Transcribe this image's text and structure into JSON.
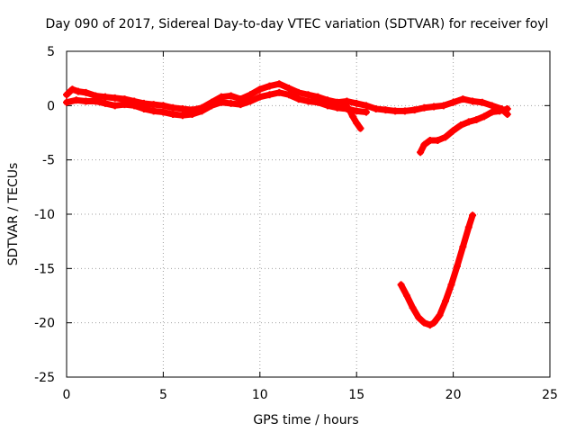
{
  "chart_data": {
    "type": "scatter",
    "title": "Day 090 of 2017, Sidereal Day-to-day VTEC variation (SDTVAR) for receiver foyl",
    "xlabel": "GPS time / hours",
    "ylabel": "SDTVAR / TECUs",
    "xlim": [
      0,
      25
    ],
    "ylim": [
      -25,
      5
    ],
    "xticks": [
      0,
      5,
      10,
      15,
      20,
      25
    ],
    "yticks": [
      -25,
      -20,
      -15,
      -10,
      -5,
      0,
      5
    ],
    "xtick_labels": [
      "0",
      "5",
      "10",
      "15",
      "20",
      "25"
    ],
    "ytick_labels": [
      "-25",
      "-20",
      "-15",
      "-10",
      "-5",
      "0",
      "5"
    ],
    "grid": true,
    "marker": "+",
    "series": [
      {
        "name": "main-band",
        "color": "#ff0000",
        "x": [
          0.0,
          0.3,
          0.6,
          1.0,
          1.5,
          2.0,
          2.5,
          3.0,
          3.5,
          4.0,
          4.5,
          5.0,
          5.5,
          6.0,
          6.5,
          7.0,
          7.5,
          8.0,
          8.5,
          9.0,
          9.5,
          10.0,
          10.5,
          11.0,
          11.5,
          12.0,
          12.5,
          13.0,
          13.5,
          14.0,
          14.5,
          15.0,
          15.5,
          16.0,
          16.5,
          17.0,
          17.5,
          18.0,
          18.5,
          19.0,
          19.5,
          20.0,
          20.5,
          21.0,
          21.5,
          22.0,
          22.5,
          22.8
        ],
        "y": [
          1.0,
          1.5,
          1.3,
          1.2,
          0.9,
          0.8,
          0.7,
          0.6,
          0.4,
          0.2,
          0.1,
          0.0,
          -0.2,
          -0.3,
          -0.4,
          -0.2,
          0.3,
          0.8,
          0.9,
          0.6,
          1.0,
          1.5,
          1.8,
          2.0,
          1.6,
          1.2,
          1.0,
          0.8,
          0.5,
          0.3,
          0.4,
          0.2,
          0.0,
          -0.3,
          -0.4,
          -0.5,
          -0.5,
          -0.4,
          -0.2,
          -0.1,
          0.0,
          0.3,
          0.6,
          0.4,
          0.3,
          0.0,
          -0.3,
          -0.8
        ]
      },
      {
        "name": "band-lower",
        "color": "#ff0000",
        "x": [
          0.0,
          0.5,
          1.0,
          1.5,
          2.0,
          2.5,
          3.0,
          3.5,
          4.0,
          4.5,
          5.0,
          5.5,
          6.0,
          6.5,
          7.0,
          7.5,
          8.0,
          8.5,
          9.0,
          9.5,
          10.0,
          10.5,
          11.0,
          11.5,
          12.0,
          12.5,
          13.0,
          13.5,
          14.0,
          14.5,
          15.0,
          15.5
        ],
        "y": [
          0.3,
          0.5,
          0.4,
          0.4,
          0.2,
          0.0,
          0.1,
          0.0,
          -0.3,
          -0.5,
          -0.6,
          -0.8,
          -0.9,
          -0.8,
          -0.5,
          0.0,
          0.3,
          0.2,
          0.1,
          0.4,
          0.8,
          1.0,
          1.2,
          1.0,
          0.6,
          0.4,
          0.3,
          0.0,
          -0.2,
          -0.3,
          -0.5,
          -0.6
        ]
      },
      {
        "name": "late-branch",
        "color": "#ff0000",
        "x": [
          18.3,
          18.5,
          18.8,
          19.2,
          19.6,
          20.0,
          20.4,
          20.8,
          21.2,
          21.6,
          22.0,
          22.4,
          22.8
        ],
        "y": [
          -4.3,
          -3.6,
          -3.2,
          -3.2,
          -2.9,
          -2.3,
          -1.8,
          -1.5,
          -1.3,
          -1.0,
          -0.6,
          -0.5,
          -0.3
        ]
      },
      {
        "name": "dip-15",
        "color": "#ff0000",
        "x": [
          14.3,
          14.6,
          14.8,
          15.0,
          15.2
        ],
        "y": [
          0.2,
          -0.3,
          -1.0,
          -1.6,
          -2.1
        ]
      },
      {
        "name": "deep-v",
        "color": "#ff0000",
        "x": [
          17.3,
          17.6,
          17.9,
          18.2,
          18.5,
          18.8,
          19.0,
          19.3,
          19.6,
          19.9,
          20.2,
          20.5,
          20.8,
          21.0
        ],
        "y": [
          -16.5,
          -17.5,
          -18.6,
          -19.5,
          -20.0,
          -20.2,
          -20.0,
          -19.3,
          -18.0,
          -16.5,
          -14.8,
          -13.0,
          -11.2,
          -10.1
        ]
      }
    ]
  }
}
